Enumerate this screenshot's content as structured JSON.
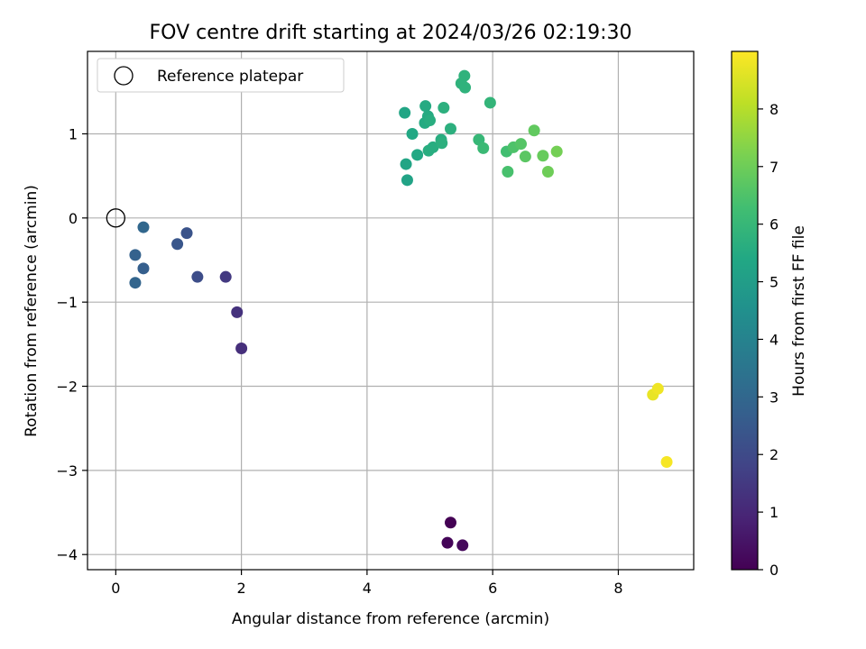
{
  "chart_data": {
    "type": "scatter",
    "title": "FOV centre drift starting at 2024/03/26 02:19:30",
    "xlabel": "Angular distance from reference (arcmin)",
    "ylabel": "Rotation from reference (arcmin)",
    "xlim": [
      -0.45,
      9.2
    ],
    "ylim": [
      -4.18,
      1.98
    ],
    "xticks": [
      0,
      2,
      4,
      6,
      8
    ],
    "yticks": [
      -4,
      -3,
      -2,
      -1,
      0,
      1
    ],
    "xtick_labels": [
      "0",
      "2",
      "4",
      "6",
      "8"
    ],
    "ytick_labels": [
      "−4",
      "−3",
      "−2",
      "−1",
      "0",
      "1"
    ],
    "grid": true,
    "legend": {
      "placement": "top-left",
      "label": "Reference platepar",
      "marker": "open-circle"
    },
    "reference_point": {
      "x": 0,
      "y": 0
    },
    "colorbar": {
      "label": "Hours from first FF file",
      "colormap": "viridis",
      "range": [
        0,
        9
      ],
      "ticks": [
        0,
        1,
        2,
        3,
        4,
        5,
        6,
        7,
        8
      ],
      "tick_labels": [
        "0",
        "1",
        "2",
        "3",
        "4",
        "5",
        "6",
        "7",
        "8"
      ]
    },
    "points": [
      {
        "x": 5.33,
        "y": -3.62,
        "hours": 0.0
      },
      {
        "x": 5.28,
        "y": -3.86,
        "hours": 0.1
      },
      {
        "x": 5.52,
        "y": -3.89,
        "hours": 0.2
      },
      {
        "x": 2.0,
        "y": -1.55,
        "hours": 1.2
      },
      {
        "x": 1.93,
        "y": -1.12,
        "hours": 1.3
      },
      {
        "x": 1.75,
        "y": -0.7,
        "hours": 1.5
      },
      {
        "x": 1.3,
        "y": -0.7,
        "hours": 2.1
      },
      {
        "x": 1.13,
        "y": -0.18,
        "hours": 2.3
      },
      {
        "x": 0.98,
        "y": -0.31,
        "hours": 2.4
      },
      {
        "x": 0.44,
        "y": -0.6,
        "hours": 2.7
      },
      {
        "x": 0.31,
        "y": -0.44,
        "hours": 2.8
      },
      {
        "x": 0.31,
        "y": -0.77,
        "hours": 2.9
      },
      {
        "x": 0.44,
        "y": -0.11,
        "hours": 3.0
      },
      {
        "x": 4.64,
        "y": 0.45,
        "hours": 5.2
      },
      {
        "x": 4.62,
        "y": 0.64,
        "hours": 5.3
      },
      {
        "x": 4.6,
        "y": 1.25,
        "hours": 5.3
      },
      {
        "x": 4.72,
        "y": 1.0,
        "hours": 5.4
      },
      {
        "x": 4.8,
        "y": 0.75,
        "hours": 5.4
      },
      {
        "x": 4.92,
        "y": 1.13,
        "hours": 5.5
      },
      {
        "x": 4.93,
        "y": 1.33,
        "hours": 5.5
      },
      {
        "x": 4.97,
        "y": 1.21,
        "hours": 5.5
      },
      {
        "x": 5.0,
        "y": 1.16,
        "hours": 5.6
      },
      {
        "x": 4.98,
        "y": 0.8,
        "hours": 5.6
      },
      {
        "x": 5.05,
        "y": 0.84,
        "hours": 5.6
      },
      {
        "x": 5.18,
        "y": 0.93,
        "hours": 5.6
      },
      {
        "x": 5.19,
        "y": 0.89,
        "hours": 5.7
      },
      {
        "x": 5.22,
        "y": 1.31,
        "hours": 5.7
      },
      {
        "x": 5.33,
        "y": 1.06,
        "hours": 5.7
      },
      {
        "x": 5.5,
        "y": 1.6,
        "hours": 5.8
      },
      {
        "x": 5.55,
        "y": 1.69,
        "hours": 5.8
      },
      {
        "x": 5.56,
        "y": 1.55,
        "hours": 5.8
      },
      {
        "x": 5.96,
        "y": 1.37,
        "hours": 5.9
      },
      {
        "x": 5.78,
        "y": 0.93,
        "hours": 6.0
      },
      {
        "x": 5.85,
        "y": 0.83,
        "hours": 6.1
      },
      {
        "x": 6.22,
        "y": 0.79,
        "hours": 6.3
      },
      {
        "x": 6.24,
        "y": 0.55,
        "hours": 6.4
      },
      {
        "x": 6.33,
        "y": 0.84,
        "hours": 6.5
      },
      {
        "x": 6.45,
        "y": 0.88,
        "hours": 6.6
      },
      {
        "x": 6.52,
        "y": 0.73,
        "hours": 6.7
      },
      {
        "x": 6.66,
        "y": 1.04,
        "hours": 6.8
      },
      {
        "x": 6.8,
        "y": 0.74,
        "hours": 6.9
      },
      {
        "x": 6.88,
        "y": 0.55,
        "hours": 7.0
      },
      {
        "x": 7.02,
        "y": 0.79,
        "hours": 7.1
      },
      {
        "x": 8.55,
        "y": -2.1,
        "hours": 8.7
      },
      {
        "x": 8.63,
        "y": -2.03,
        "hours": 8.8
      },
      {
        "x": 8.77,
        "y": -2.9,
        "hours": 8.9
      }
    ]
  }
}
